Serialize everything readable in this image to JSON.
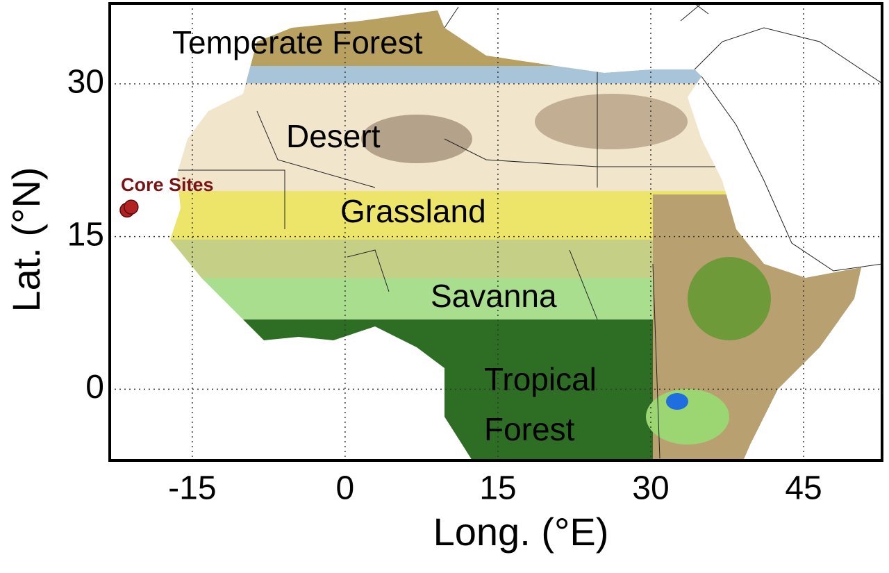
{
  "map": {
    "xlabel": "Long. (°E)",
    "ylabel": "Lat. (°N)",
    "xlim": [
      -23.1,
      52.7
    ],
    "ylim": [
      -7,
      37.9
    ],
    "xticks": [
      -15,
      0,
      15,
      30,
      45
    ],
    "yticks": [
      0,
      15,
      30
    ],
    "grid": true,
    "regions": [
      "Temperate Forest",
      "Desert",
      "Grassland",
      "Savanna",
      "Tropical",
      "Forest"
    ],
    "sites": {
      "label": "Core Sites",
      "color": "#b22222",
      "lon": [
        -21.4,
        -21.0
      ],
      "lat": [
        17.6,
        17.9
      ]
    }
  }
}
